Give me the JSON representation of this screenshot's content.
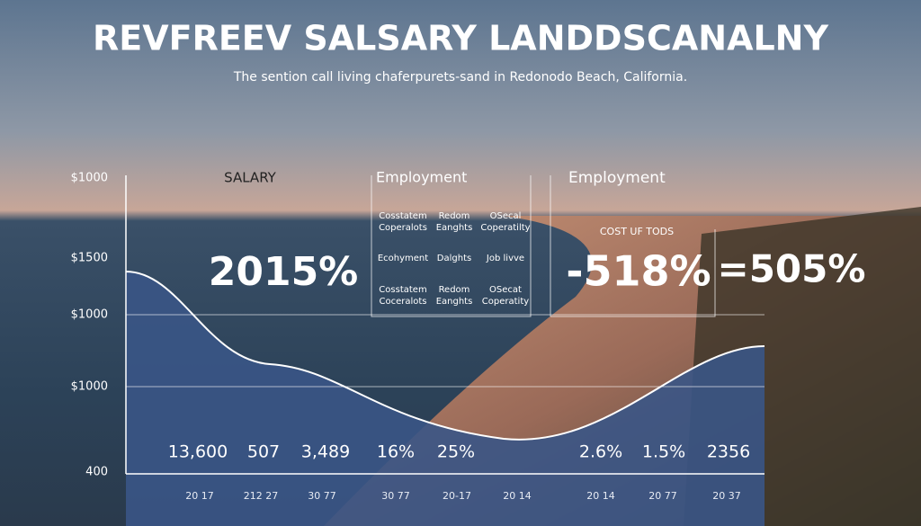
{
  "header": {
    "title": "REVFREEV SALSARY LANDDSCANALNY",
    "subtitle": "The sention call living chaferpurets-sand in Redonodo Beach, California."
  },
  "axis_labels": [
    "$1000",
    "$1500",
    "$1000",
    "$1000",
    "400"
  ],
  "salary_panel": {
    "label": "SALARY",
    "value": "2015%"
  },
  "employment_panel": {
    "title": "Employment",
    "rows": [
      [
        "Cosstatem Coperalots",
        "Redom Eanghts",
        "OSecal Coperatilty"
      ],
      [
        "Ecohyment",
        "Dalghts",
        "Job livve"
      ],
      [
        "Cosstatem Coceralots",
        "Redom Eanghts",
        "OSecat Coperatity"
      ]
    ]
  },
  "cost_panel": {
    "title": "Employment",
    "label": "COST UF TODS",
    "value": "-518%",
    "value_2": "=505%"
  },
  "bottom_values": [
    "13,600",
    "507",
    "3,489",
    "16%",
    "25%",
    "2.6%",
    "1.5%",
    "2356"
  ],
  "years": [
    "20 17",
    "212 27",
    "30 77",
    "30 77",
    "20-17",
    "20 14",
    "20 14",
    "20 77",
    "20 37"
  ]
}
